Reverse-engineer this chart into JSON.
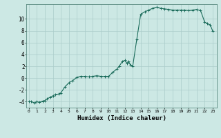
{
  "title": "",
  "xlabel": "Humidex (Indice chaleur)",
  "ylabel": "",
  "bg_color": "#cce8e4",
  "grid_color": "#aaccca",
  "line_color": "#1a6b5a",
  "marker_color": "#1a6b5a",
  "x_ticks": [
    0,
    1,
    2,
    3,
    4,
    5,
    6,
    7,
    8,
    9,
    10,
    11,
    12,
    13,
    14,
    15,
    16,
    17,
    18,
    19,
    20,
    21,
    22,
    23
  ],
  "y_ticks": [
    -4,
    -2,
    0,
    2,
    4,
    6,
    8,
    10
  ],
  "ylim": [
    -5.0,
    12.5
  ],
  "xlim": [
    -0.3,
    23.5
  ],
  "x_values": [
    0,
    0.3,
    0.7,
    1.0,
    1.3,
    1.7,
    2.0,
    2.3,
    2.7,
    3.0,
    3.3,
    3.7,
    4.0,
    4.5,
    5.0,
    5.5,
    6.0,
    6.5,
    7.0,
    7.5,
    8.0,
    8.5,
    9.0,
    9.5,
    10.0,
    10.5,
    11.0,
    11.3,
    11.7,
    12.0,
    12.3,
    12.5,
    12.7,
    13.0,
    13.5,
    14.0,
    14.5,
    15.0,
    15.5,
    16.0,
    16.5,
    17.0,
    17.5,
    18.0,
    18.5,
    19.0,
    19.5,
    20.0,
    20.5,
    21.0,
    21.5,
    22.0,
    22.3,
    22.7,
    23.0
  ],
  "y_values": [
    -4.0,
    -4.0,
    -4.2,
    -4.0,
    -4.1,
    -3.9,
    -3.8,
    -3.5,
    -3.2,
    -3.0,
    -2.8,
    -2.7,
    -2.5,
    -1.5,
    -0.8,
    -0.4,
    0.1,
    0.3,
    0.3,
    0.2,
    0.3,
    0.4,
    0.3,
    0.3,
    0.3,
    1.0,
    1.5,
    2.0,
    2.8,
    3.0,
    2.5,
    2.8,
    2.2,
    2.0,
    6.5,
    10.8,
    11.2,
    11.5,
    11.8,
    12.0,
    11.8,
    11.7,
    11.6,
    11.5,
    11.5,
    11.5,
    11.5,
    11.4,
    11.5,
    11.6,
    11.4,
    9.5,
    9.2,
    9.0,
    8.0
  ]
}
